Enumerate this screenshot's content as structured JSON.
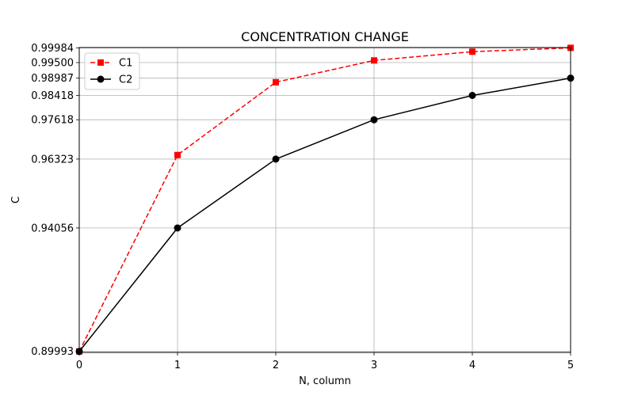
{
  "chart_data": {
    "type": "line",
    "title": "CONCENTRATION CHANGE",
    "xlabel": "N, column",
    "ylabel": "C",
    "x": [
      0,
      1,
      2,
      3,
      4,
      5
    ],
    "xlim": [
      0,
      5
    ],
    "ylim": [
      0.8996,
      0.99995
    ],
    "x_ticks": [
      "0",
      "1",
      "2",
      "3",
      "4",
      "5"
    ],
    "y_ticks": [
      "0.89993",
      "0.94056",
      "0.96323",
      "0.97618",
      "0.98418",
      "0.98987",
      "0.99500",
      "0.99984"
    ],
    "grid": true,
    "legend_position": "upper-left",
    "series": [
      {
        "name": "C1",
        "values": [
          0.89993,
          0.96457,
          0.98853,
          0.9957,
          0.99858,
          0.99984
        ],
        "color": "#ff0000",
        "line_style": "dashed",
        "marker": "square"
      },
      {
        "name": "C2",
        "values": [
          0.89993,
          0.94056,
          0.96323,
          0.97618,
          0.98418,
          0.98987
        ],
        "color": "#000000",
        "line_style": "solid",
        "marker": "circle"
      }
    ]
  }
}
